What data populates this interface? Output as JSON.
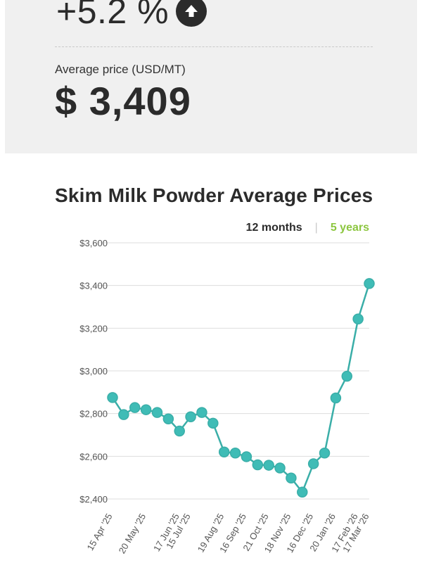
{
  "summary": {
    "change": "+5.2 %",
    "avg_label": "Average price (USD/MT)",
    "avg_value": "$ 3,409"
  },
  "range_tabs": {
    "tab_12": "12 months",
    "separator": "|",
    "tab_5": "5 years"
  },
  "colors": {
    "line": "#3aaea8",
    "point_fill": "#3fbcb6",
    "accent": "#8cc63f",
    "grid": "#dddddd"
  },
  "icons": {
    "change_indicator": "up-arrow-icon"
  },
  "chart_data": {
    "type": "line",
    "title": "Skim Milk Powder Average Prices",
    "xlabel": "",
    "ylabel": "",
    "ylim": [
      2400,
      3600
    ],
    "yticks": [
      3600,
      3400,
      3200,
      3000,
      2800,
      2600,
      2400
    ],
    "ytick_labels": [
      "$3,600",
      "$3,400",
      "$3,200",
      "$3,000",
      "$2,800",
      "$2,600",
      "$2,400"
    ],
    "grid": true,
    "points": 24,
    "values": [
      2875,
      2795,
      2828,
      2818,
      2805,
      2775,
      2718,
      2785,
      2805,
      2755,
      2620,
      2615,
      2598,
      2560,
      2558,
      2545,
      2498,
      2432,
      2565,
      2615,
      2873,
      2975,
      3243,
      3409
    ],
    "xtick_labels": [
      {
        "index": 0,
        "label": "15 Apr '25"
      },
      {
        "index": 3,
        "label": "20 May '25"
      },
      {
        "index": 6,
        "label": "17 Jun '25"
      },
      {
        "index": 7,
        "label": "15 Jul '25"
      },
      {
        "index": 10,
        "label": "19 Aug '25"
      },
      {
        "index": 12,
        "label": "16 Sep '25"
      },
      {
        "index": 14,
        "label": "21 Oct '25"
      },
      {
        "index": 16,
        "label": "18 Nov '25"
      },
      {
        "index": 18,
        "label": "16 Dec '25"
      },
      {
        "index": 20,
        "label": "20 Jan '26"
      },
      {
        "index": 22,
        "label": "17 Feb '26"
      },
      {
        "index": 23,
        "label": "17 Mar '26"
      }
    ]
  }
}
